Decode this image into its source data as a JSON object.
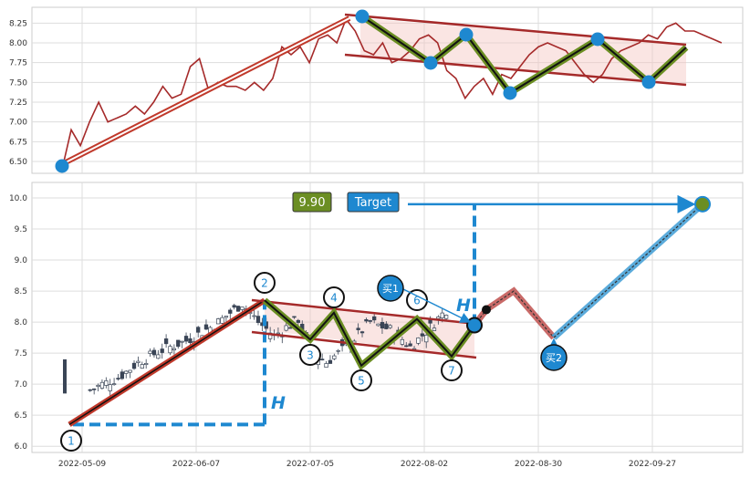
{
  "colors": {
    "price_line": "#a52a2a",
    "trend_line": "#c0392b",
    "channel_fill": "#f4c6c0",
    "zigzag_green": "#6b8e23",
    "marker_blue": "#1e88d0",
    "candle_dark": "#3a4556",
    "projection_red": "#c0504d",
    "projection_blue": "#4aa3d8"
  },
  "chart_data": [
    {
      "type": "line",
      "panel": "top",
      "ylim": [
        6.35,
        8.45
      ],
      "yticks": [
        "6.50",
        "6.75",
        "7.00",
        "7.25",
        "7.50",
        "7.75",
        "8.00",
        "8.25"
      ],
      "x_days": [
        0,
        2,
        4,
        6,
        8,
        10,
        12,
        14,
        16,
        18,
        20,
        22,
        24,
        26,
        28,
        30,
        32,
        34,
        36,
        38,
        40,
        42,
        44,
        46,
        48,
        50,
        52,
        54,
        56,
        58,
        60,
        62,
        64,
        66,
        68,
        70,
        72,
        74,
        76,
        78,
        80,
        82,
        84,
        86,
        88,
        90,
        92,
        94,
        96,
        98,
        100,
        102,
        104,
        106,
        108,
        110,
        112,
        114,
        116,
        118,
        120,
        122,
        124,
        126,
        128,
        130,
        132,
        134,
        136,
        138,
        140,
        142,
        144
      ],
      "values": [
        6.4,
        6.9,
        6.7,
        7.0,
        7.25,
        7.0,
        7.05,
        7.1,
        7.2,
        7.1,
        7.25,
        7.45,
        7.3,
        7.35,
        7.7,
        7.8,
        7.4,
        7.5,
        7.45,
        7.45,
        7.4,
        7.5,
        7.4,
        7.55,
        7.95,
        7.85,
        7.95,
        7.75,
        8.05,
        8.1,
        8.0,
        8.3,
        8.15,
        7.9,
        7.85,
        8.0,
        7.75,
        7.8,
        7.9,
        8.05,
        8.1,
        8.0,
        7.65,
        7.55,
        7.3,
        7.45,
        7.55,
        7.35,
        7.6,
        7.55,
        7.7,
        7.85,
        7.95,
        8.0,
        7.95,
        7.9,
        7.75,
        7.6,
        7.5,
        7.6,
        7.8,
        7.9,
        7.95,
        8.0,
        8.1,
        8.05,
        8.2,
        8.25,
        8.15,
        8.15,
        8.1,
        8.05,
        8.0
      ]
    },
    {
      "type": "candlestick",
      "panel": "bottom",
      "ylim": [
        5.9,
        10.25
      ],
      "yticks": [
        "6.0",
        "6.5",
        "7.0",
        "7.5",
        "8.0",
        "8.5",
        "9.0",
        "9.5",
        "10.0"
      ],
      "x_tick_labels": [
        "2022-05-09",
        "2022-06-07",
        "2022-07-05",
        "2022-08-02",
        "2022-08-30",
        "2022-09-27"
      ],
      "zigzag_points": [
        {
          "label": "1",
          "value": 6.35
        },
        {
          "label": "2",
          "value": 8.35
        },
        {
          "label": "3",
          "value": 7.72
        },
        {
          "label": "4",
          "value": 8.15
        },
        {
          "label": "5",
          "value": 7.3
        },
        {
          "label": "6",
          "value": 8.05
        },
        {
          "label": "7",
          "value": 7.45
        }
      ],
      "height_marker": "H",
      "target_label": "Target",
      "target_value": "9.90",
      "buy_labels": [
        "买1",
        "买2"
      ]
    }
  ]
}
